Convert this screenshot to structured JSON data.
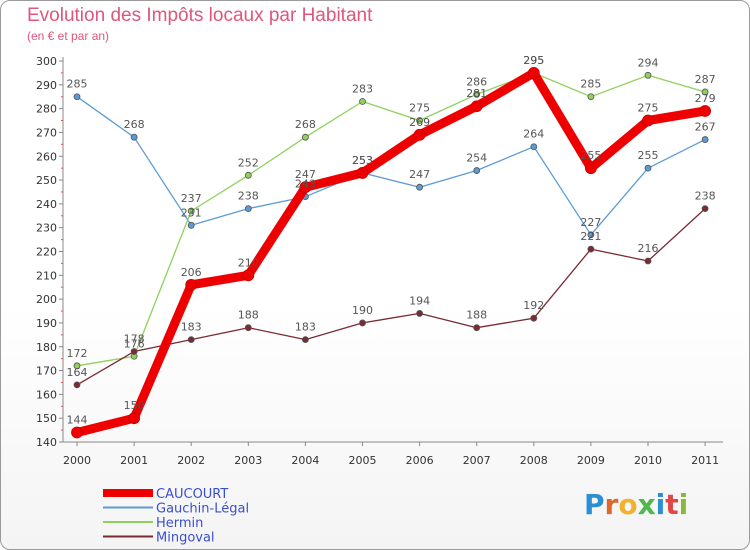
{
  "header": {
    "title": "Evolution des Impôts locaux par Habitant",
    "subtitle": "(en € et par an)"
  },
  "logo": {
    "letters": [
      "P",
      "r",
      "o",
      "x",
      "i",
      "t",
      "i"
    ]
  },
  "chart_data": {
    "type": "line",
    "title": "Evolution des Impôts locaux par Habitant",
    "subtitle": "(en € et par an)",
    "xlabel": "",
    "ylabel": "",
    "categories": [
      "2000",
      "2001",
      "2002",
      "2003",
      "2004",
      "2005",
      "2006",
      "2007",
      "2008",
      "2009",
      "2010",
      "2011"
    ],
    "ylim": [
      140,
      300
    ],
    "yticks": [
      140,
      150,
      160,
      170,
      180,
      190,
      200,
      210,
      220,
      230,
      240,
      250,
      260,
      270,
      280,
      290,
      300
    ],
    "grid": false,
    "legend_position": "bottom-left",
    "series": [
      {
        "name": "CAUCOURT",
        "color": "#ee0000",
        "width": 9,
        "values": [
          144,
          150,
          206,
          210,
          247,
          253,
          269,
          281,
          295,
          255,
          275,
          279
        ]
      },
      {
        "name": "Gauchin-Légal",
        "color": "#5b9bd5",
        "width": 1.3,
        "values": [
          285,
          268,
          231,
          238,
          243,
          253,
          247,
          254,
          264,
          227,
          255,
          267
        ]
      },
      {
        "name": "Hermin",
        "color": "#8fd15a",
        "width": 1.3,
        "values": [
          172,
          176,
          237,
          252,
          268,
          283,
          275,
          286,
          295,
          285,
          294,
          287
        ]
      },
      {
        "name": "Mingoval",
        "color": "#7a2a33",
        "width": 1.3,
        "values": [
          164,
          178,
          183,
          188,
          183,
          190,
          194,
          188,
          192,
          221,
          216,
          238
        ]
      }
    ]
  }
}
